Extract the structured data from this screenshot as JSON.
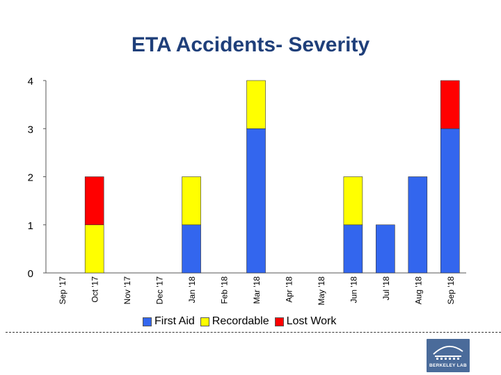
{
  "chart_data": {
    "type": "bar",
    "stacked": true,
    "title": "ETA Accidents- Severity",
    "categories": [
      "Sep '17",
      "Oct '17",
      "Nov '17",
      "Dec '17",
      "Jan '18",
      "Feb '18",
      "Mar '18",
      "Apr '18",
      "May '18",
      "Jun '18",
      "Jul '18",
      "Aug '18",
      "Sep '18"
    ],
    "series": [
      {
        "name": "First Aid",
        "color": "#3366ee",
        "values": [
          0,
          0,
          0,
          0,
          1,
          0,
          3,
          0,
          0,
          1,
          1,
          2,
          3
        ]
      },
      {
        "name": "Recordable",
        "color": "#ffff00",
        "values": [
          0,
          1,
          0,
          0,
          1,
          0,
          1,
          0,
          0,
          1,
          0,
          0,
          0
        ]
      },
      {
        "name": "Lost Work",
        "color": "#ff0000",
        "values": [
          0,
          1,
          0,
          0,
          0,
          0,
          0,
          0,
          0,
          0,
          0,
          0,
          1
        ]
      }
    ],
    "ylim": [
      0,
      4
    ],
    "yticks": [
      0,
      1,
      2,
      3,
      4
    ],
    "grid": false,
    "legend_position": "bottom"
  },
  "logo": {
    "text": "BERKELEY LAB"
  }
}
